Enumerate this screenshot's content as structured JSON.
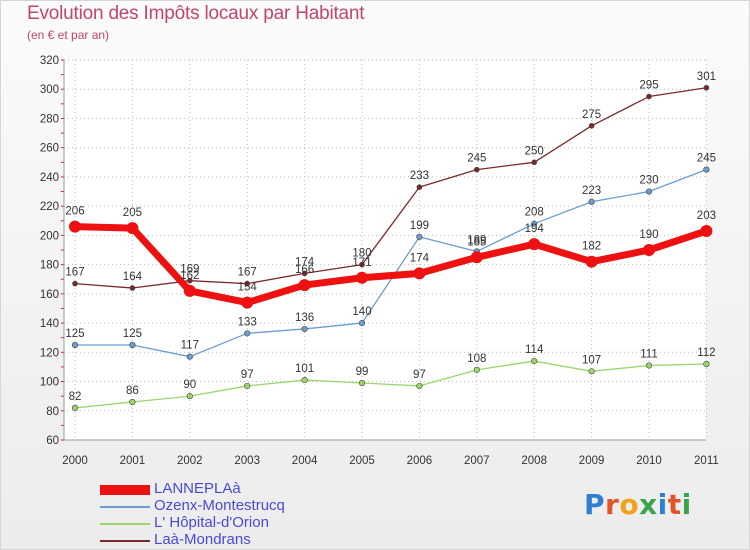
{
  "header": {
    "title": "Evolution des Impôts locaux par Habitant",
    "subtitle": "(en € et par an)"
  },
  "logo": {
    "text": "Proxiti",
    "colors": [
      "#2f7fd0",
      "#e2542a",
      "#f0a21a",
      "#3aa34b",
      "#2f7fd0",
      "#e2542a",
      "#3aa34b"
    ]
  },
  "chart_data": {
    "type": "line",
    "x": [
      "2000",
      "2001",
      "2002",
      "2003",
      "2004",
      "2005",
      "2006",
      "2007",
      "2008",
      "2009",
      "2010",
      "2011"
    ],
    "ylim": [
      60,
      320
    ],
    "yticks": [
      60,
      80,
      100,
      120,
      140,
      160,
      180,
      200,
      220,
      240,
      260,
      280,
      300,
      320
    ],
    "grid": true,
    "legend": "bottom-left",
    "series": [
      {
        "name": "Laà-Mondrans",
        "color": "#7a2a2a",
        "width": 1.3,
        "marker": 2.5,
        "values": [
          167,
          164,
          169,
          167,
          174,
          180,
          233,
          245,
          250,
          275,
          295,
          301
        ]
      },
      {
        "name": "Ozenx-Montestrucq",
        "color": "#6a9dd0",
        "width": 1.3,
        "marker": 2.8,
        "values": [
          125,
          125,
          117,
          133,
          136,
          140,
          199,
          189,
          208,
          223,
          230,
          245
        ]
      },
      {
        "name": "L' Hôpital-d'Orion",
        "color": "#9ad66a",
        "width": 1.3,
        "marker": 2.8,
        "values": [
          82,
          86,
          90,
          97,
          101,
          99,
          97,
          108,
          114,
          107,
          111,
          112
        ]
      },
      {
        "name": "LANNEPLAà",
        "color": "#ee1111",
        "width": 7,
        "marker": 6,
        "values": [
          206,
          205,
          162,
          154,
          166,
          171,
          174,
          185,
          194,
          182,
          190,
          203
        ]
      }
    ],
    "legend_order": [
      "LANNEPLAà",
      "Ozenx-Montestrucq",
      "L' Hôpital-d'Orion",
      "Laà-Mondrans"
    ]
  }
}
